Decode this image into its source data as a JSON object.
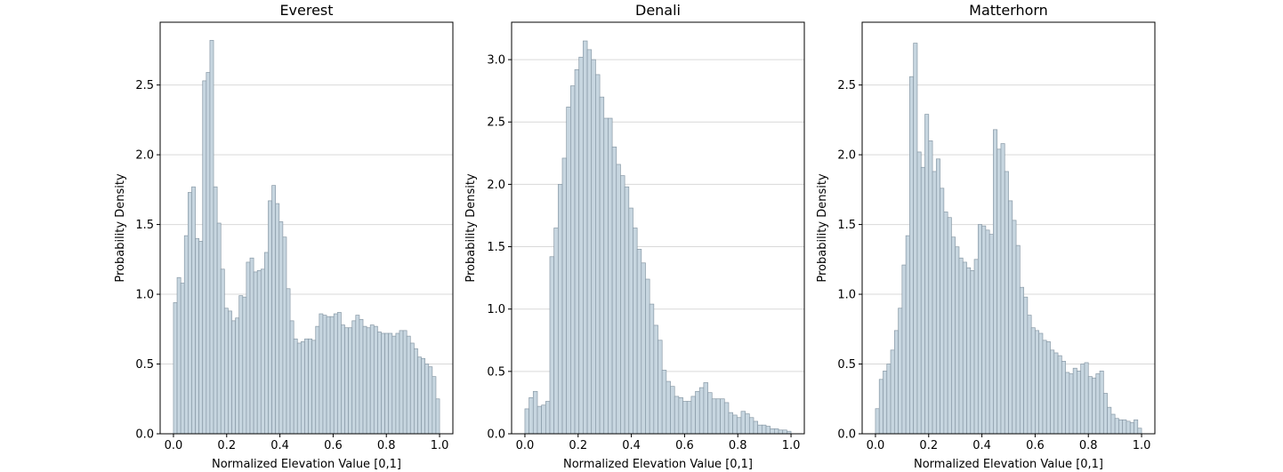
{
  "chart_data": [
    {
      "type": "bar",
      "title": "Everest",
      "xlabel": "Normalized Elevation Value [0,1]",
      "ylabel": "Probability Density",
      "xlim": [
        -0.05,
        1.05
      ],
      "ylim": [
        0,
        2.95
      ],
      "xticks": [
        0.0,
        0.2,
        0.4,
        0.6,
        0.8,
        1.0
      ],
      "xtick_labels": [
        "0.0",
        "0.2",
        "0.4",
        "0.6",
        "0.8",
        "1.0"
      ],
      "yticks": [
        0.0,
        0.5,
        1.0,
        1.5,
        2.0,
        2.5
      ],
      "ytick_labels": [
        "0.0",
        "0.5",
        "1.0",
        "1.5",
        "2.0",
        "2.5"
      ],
      "grid": "y",
      "bin_edges_range": [
        0,
        1
      ],
      "values": [
        0.94,
        1.12,
        1.08,
        1.42,
        1.73,
        1.77,
        1.4,
        1.38,
        2.53,
        2.59,
        2.82,
        1.77,
        1.51,
        1.18,
        0.9,
        0.88,
        0.81,
        0.83,
        0.99,
        0.98,
        1.23,
        1.26,
        1.16,
        1.17,
        1.18,
        1.3,
        1.67,
        1.78,
        1.65,
        1.52,
        1.41,
        1.04,
        0.81,
        0.68,
        0.65,
        0.66,
        0.68,
        0.68,
        0.67,
        0.77,
        0.86,
        0.85,
        0.84,
        0.84,
        0.86,
        0.87,
        0.78,
        0.76,
        0.76,
        0.81,
        0.85,
        0.82,
        0.77,
        0.76,
        0.78,
        0.77,
        0.73,
        0.72,
        0.72,
        0.72,
        0.7,
        0.72,
        0.74,
        0.74,
        0.7,
        0.65,
        0.61,
        0.55,
        0.54,
        0.5,
        0.48,
        0.41,
        0.25
      ]
    },
    {
      "type": "bar",
      "title": "Denali",
      "xlabel": "Normalized Elevation Value [0,1]",
      "ylabel": "Probability Density",
      "xlim": [
        -0.05,
        1.05
      ],
      "ylim": [
        0,
        3.3
      ],
      "xticks": [
        0.0,
        0.2,
        0.4,
        0.6,
        0.8,
        1.0
      ],
      "xtick_labels": [
        "0.0",
        "0.2",
        "0.4",
        "0.6",
        "0.8",
        "1.0"
      ],
      "yticks": [
        0.0,
        0.5,
        1.0,
        1.5,
        2.0,
        2.5,
        3.0
      ],
      "ytick_labels": [
        "0.0",
        "0.5",
        "1.0",
        "1.5",
        "2.0",
        "2.5",
        "3.0"
      ],
      "grid": "y",
      "bin_edges_range": [
        0,
        1
      ],
      "values": [
        0.2,
        0.29,
        0.34,
        0.22,
        0.23,
        0.26,
        1.42,
        1.65,
        2.0,
        2.21,
        2.62,
        2.79,
        2.92,
        3.02,
        3.15,
        3.08,
        3.0,
        2.88,
        2.7,
        2.53,
        2.53,
        2.3,
        2.16,
        2.07,
        1.98,
        1.81,
        1.65,
        1.48,
        1.37,
        1.24,
        1.04,
        0.87,
        0.75,
        0.51,
        0.42,
        0.38,
        0.3,
        0.29,
        0.26,
        0.26,
        0.3,
        0.34,
        0.37,
        0.41,
        0.33,
        0.28,
        0.28,
        0.28,
        0.25,
        0.17,
        0.15,
        0.13,
        0.18,
        0.16,
        0.13,
        0.1,
        0.07,
        0.07,
        0.06,
        0.04,
        0.04,
        0.03,
        0.03,
        0.02
      ]
    },
    {
      "type": "bar",
      "title": "Matterhorn",
      "xlabel": "Normalized Elevation Value [0,1]",
      "ylabel": "Probability Density",
      "xlim": [
        -0.05,
        1.05
      ],
      "ylim": [
        0,
        2.95
      ],
      "xticks": [
        0.0,
        0.2,
        0.4,
        0.6,
        0.8,
        1.0
      ],
      "xtick_labels": [
        "0.0",
        "0.2",
        "0.4",
        "0.6",
        "0.8",
        "1.0"
      ],
      "yticks": [
        0.0,
        0.5,
        1.0,
        1.5,
        2.0,
        2.5
      ],
      "ytick_labels": [
        "0.0",
        "0.5",
        "1.0",
        "1.5",
        "2.0",
        "2.5"
      ],
      "grid": "y",
      "bin_edges_range": [
        0,
        1
      ],
      "values": [
        0.18,
        0.39,
        0.45,
        0.5,
        0.6,
        0.74,
        0.9,
        1.21,
        1.42,
        2.56,
        2.8,
        2.02,
        1.91,
        2.29,
        2.1,
        1.88,
        1.97,
        1.76,
        1.59,
        1.55,
        1.41,
        1.34,
        1.26,
        1.23,
        1.19,
        1.17,
        1.25,
        1.5,
        1.49,
        1.46,
        1.43,
        2.18,
        2.04,
        2.08,
        1.88,
        1.67,
        1.53,
        1.35,
        1.05,
        0.98,
        0.85,
        0.76,
        0.74,
        0.72,
        0.67,
        0.66,
        0.6,
        0.58,
        0.56,
        0.52,
        0.44,
        0.43,
        0.47,
        0.45,
        0.5,
        0.51,
        0.41,
        0.4,
        0.43,
        0.45,
        0.29,
        0.19,
        0.14,
        0.11,
        0.1,
        0.1,
        0.09,
        0.08,
        0.1,
        0.04
      ]
    }
  ]
}
